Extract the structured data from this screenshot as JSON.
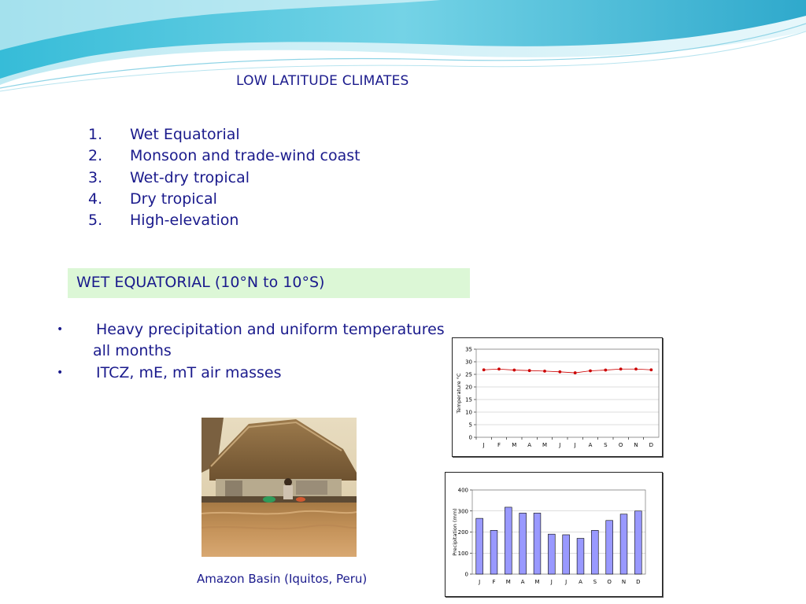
{
  "slide": {
    "title": "LOW LATITUDE CLIMATES",
    "list": [
      {
        "num": "1.",
        "label": "Wet Equatorial"
      },
      {
        "num": "2.",
        "label": "Monsoon and trade-wind coast"
      },
      {
        "num": "3.",
        "label": "Wet-dry tropical"
      },
      {
        "num": "4.",
        "label": "Dry tropical"
      },
      {
        "num": "5.",
        "label": "High-elevation"
      }
    ],
    "section_heading": "WET EQUATORIAL (10°N to 10°S)",
    "bullets": [
      {
        "marker": "•",
        "line1": "Heavy precipitation and uniform temperatures",
        "line2": "all months"
      },
      {
        "marker": "•",
        "line1": "ITCZ, mE, mT air masses"
      }
    ],
    "photo_caption": "Amazon Basin (Iquitos, Peru)"
  },
  "colors": {
    "text": "#1a1a8c",
    "section_box": "#dcf7d6",
    "temp_line": "#cc0000",
    "precip_bar": "#9999ff"
  },
  "chart_data": [
    {
      "type": "line",
      "categories": [
        "J",
        "F",
        "M",
        "A",
        "M",
        "J",
        "J",
        "A",
        "S",
        "O",
        "N",
        "D"
      ],
      "series": [
        {
          "values": [
            26.8,
            27.1,
            26.7,
            26.5,
            26.3,
            26.0,
            25.6,
            26.4,
            26.7,
            27.1,
            27.1,
            26.8
          ]
        }
      ],
      "ylabel": "Temperature °C",
      "ylim": [
        0,
        35
      ],
      "yticks": [
        "0",
        "5",
        "10",
        "15",
        "20",
        "25",
        "30",
        "35"
      ],
      "grid": true
    },
    {
      "type": "bar",
      "categories": [
        "J",
        "F",
        "M",
        "A",
        "M",
        "J",
        "J",
        "A",
        "S",
        "O",
        "N",
        "D"
      ],
      "values": [
        265,
        208,
        318,
        290,
        290,
        190,
        187,
        170,
        208,
        255,
        285,
        300
      ],
      "ylabel": "Precipitation (mm)",
      "ylim": [
        0,
        400
      ],
      "yticks": [
        "0",
        "100",
        "200",
        "300",
        "400"
      ],
      "grid": true
    }
  ]
}
